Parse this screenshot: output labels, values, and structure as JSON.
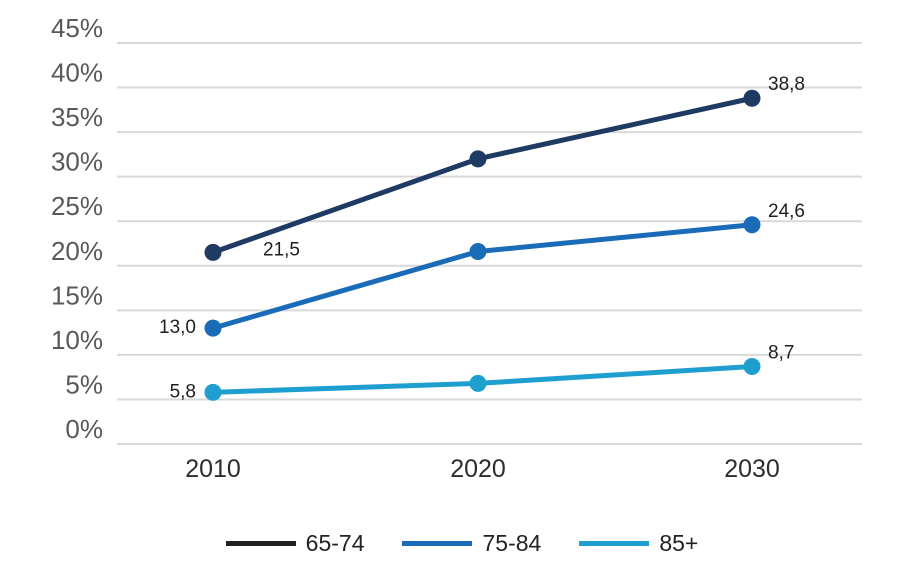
{
  "colors": {
    "background": "#ffffff",
    "gridline": "#d9d9d9",
    "y_axis_label": "#595959",
    "x_axis_label": "#2d2d2d",
    "data_label": "#1f1f1f",
    "legend_label": "#222222"
  },
  "chart_data": {
    "type": "line",
    "title": "",
    "categories": [
      "2010",
      "2020",
      "2030"
    ],
    "x_values": [
      2010,
      2020,
      2030
    ],
    "ylim": [
      0,
      45
    ],
    "yticks": [
      {
        "value": 45,
        "label": "45%"
      },
      {
        "value": 40,
        "label": "40%"
      },
      {
        "value": 35,
        "label": "35%"
      },
      {
        "value": 30,
        "label": "30%"
      },
      {
        "value": 25,
        "label": "25%"
      },
      {
        "value": 20,
        "label": "20%"
      },
      {
        "value": 15,
        "label": "15%"
      },
      {
        "value": 10,
        "label": "10%"
      },
      {
        "value": 5,
        "label": "5%"
      },
      {
        "value": 0,
        "label": "0%"
      }
    ],
    "grid": "horizontal",
    "legend_position": "bottom",
    "decimal_separator": ",",
    "series": [
      {
        "name": "65-74",
        "color": "#1f3a63",
        "legend_color": "#231f20",
        "values": [
          21.5,
          32.0,
          38.8
        ],
        "point_labels": [
          "21,5",
          null,
          "38,8"
        ],
        "label_anchors": [
          "right",
          null,
          "above-right"
        ]
      },
      {
        "name": "75-84",
        "color": "#1a6cb8",
        "legend_color": "#1a6cb8",
        "values": [
          13.0,
          21.6,
          24.6
        ],
        "point_labels": [
          "13,0",
          null,
          "24,6"
        ],
        "label_anchors": [
          "left",
          null,
          "above-right"
        ]
      },
      {
        "name": "85+",
        "color": "#1f9fd0",
        "legend_color": "#1f9fd0",
        "values": [
          5.8,
          6.8,
          8.7
        ],
        "point_labels": [
          "5,8",
          null,
          "8,7"
        ],
        "label_anchors": [
          "left",
          null,
          "above-right"
        ]
      }
    ]
  }
}
